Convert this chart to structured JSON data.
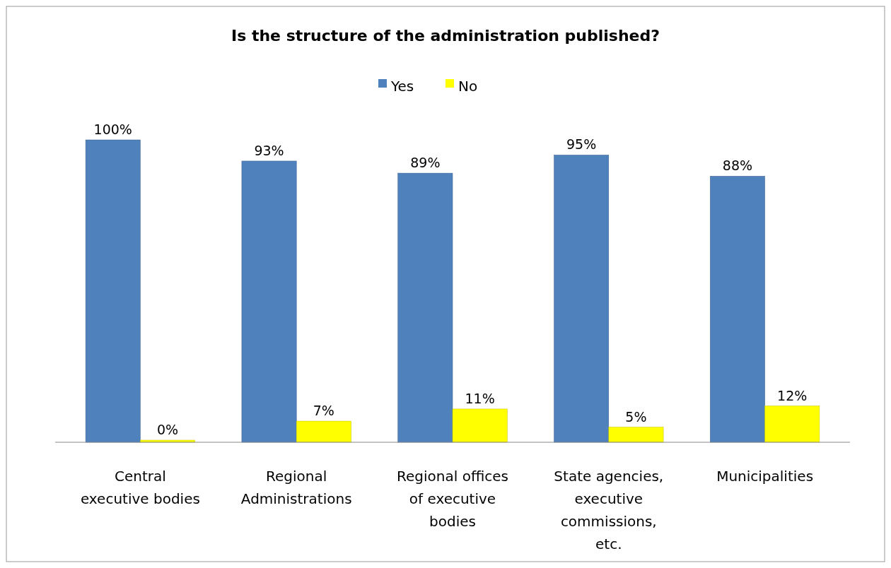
{
  "chart_data": {
    "type": "bar",
    "title": "Is the structure of the administration published?",
    "categories": [
      "Central executive bodies",
      "Regional Administrations",
      "Regional offices of executive bodies",
      "State agencies, executive commissions, etc.",
      "Municipalities"
    ],
    "series": [
      {
        "name": "Yes",
        "color": "#4f81bd",
        "values": [
          100,
          93,
          89,
          95,
          88
        ],
        "value_labels": [
          "100%",
          "93%",
          "89%",
          "95%",
          "88%"
        ]
      },
      {
        "name": "No",
        "color": "#ffff00",
        "values": [
          0,
          7,
          11,
          5,
          12
        ],
        "value_labels": [
          "0%",
          "7%",
          "11%",
          "5%",
          "12%"
        ]
      }
    ],
    "legend": "top",
    "grid": false
  }
}
